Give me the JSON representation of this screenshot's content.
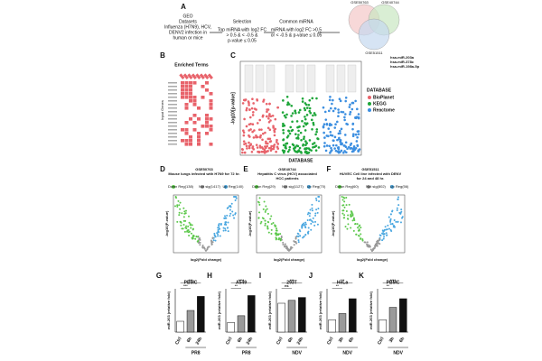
{
  "panel_a": {
    "letter": "A",
    "source": [
      "GEO",
      "Datasets",
      "Influenza (H7N9), HCV,",
      "DENV2 infection in",
      "human or mice"
    ],
    "step1": {
      "title": "Selection",
      "lines": [
        "Top miRNA with log2 FC",
        "> 0.5  & < -0.5 &",
        "p-value ≤ 0.05"
      ]
    },
    "step2": {
      "title": "Common miRNA",
      "lines": [
        "miRNA with log2 FC >0.5",
        "or < -0.5 & p-value ≤ 0.05"
      ]
    },
    "venn": [
      "GSE50763",
      "GSE40744",
      "GSE51511"
    ],
    "result": [
      "hsa-miR-203a",
      "hsa-miR-378c",
      "hsa-miR-198a-5p"
    ]
  },
  "panel_b": {
    "letter": "B",
    "title": "Enriched Terms",
    "y_label": "Input Genes"
  },
  "panel_c": {
    "letter": "C",
    "y_label": "-log10[p-value]",
    "x_label": "DATABASE",
    "legend_title": "DATABASE",
    "legend": [
      {
        "name": "BioPlanet",
        "color": "#e8636b"
      },
      {
        "name": "KEGG",
        "color": "#1ea63a"
      },
      {
        "name": "Reactome",
        "color": "#3d8fe0"
      }
    ]
  },
  "volcanoes": [
    {
      "letter": "D",
      "title": [
        "GSE50763",
        "Mouse lungs infected with H7N9 for 72 hr."
      ],
      "down": "Down Reg(138)",
      "nsig": "Not sig(1417)",
      "up": "Up Reg(140)",
      "y_label": "-log10(P-value)",
      "x_label": "log2(Fold change)"
    },
    {
      "letter": "E",
      "title": [
        "GSE40744",
        "Hepatitis C virus (HCV) associated",
        "HCC patients"
      ],
      "down": "Down Reg(29)",
      "nsig": "Not sig(1127)",
      "up": "Up Reg(70)",
      "y_label": "-log10(P-value)",
      "x_label": "log2(Fold change)"
    },
    {
      "letter": "F",
      "title": [
        "GSE51511",
        "HUVEC Cell line infected with DENV",
        "for 24 and 48 hr."
      ],
      "down": "Down Reg(60)",
      "nsig": "Not sig(802)",
      "up": "Up Reg(56)",
      "y_label": "-log10(P-value)",
      "x_label": "log2(Fold change)"
    }
  ],
  "bar_colors": [
    "#ffffff",
    "#9a9a9a",
    "#111111"
  ],
  "bars": [
    {
      "letter": "G",
      "title": "PBMC",
      "categories": [
        "Ctrl",
        "6h",
        "24h"
      ],
      "values": [
        1,
        2,
        3.3
      ],
      "group": "PR8",
      "sig": [
        "***",
        "***"
      ],
      "ylim": [
        0,
        4
      ],
      "y_label": "miR-203 (relative fold)"
    },
    {
      "letter": "H",
      "title": "A549",
      "categories": [
        "Ctrl",
        "6h",
        "24h"
      ],
      "values": [
        1,
        1.7,
        3.8
      ],
      "group": "PR8",
      "sig": [
        "**",
        "****"
      ],
      "ylim": [
        0,
        4.5
      ],
      "y_label": "miR-203 (relative fold)"
    },
    {
      "letter": "I",
      "title": "293T",
      "categories": [
        "Ctrl",
        "6h",
        "24h"
      ],
      "values": [
        1,
        1.1,
        1.2
      ],
      "group": "NDV",
      "sig": [
        "ns",
        "***"
      ],
      "ylim": [
        0,
        1.5
      ],
      "y_label": "miR-203 (relative fold)"
    },
    {
      "letter": "J",
      "title": "HeLa",
      "categories": [
        "Ctrl",
        "3h",
        "6h"
      ],
      "values": [
        1,
        1.5,
        2.7
      ],
      "group": "NDV",
      "sig": [
        "**",
        "***"
      ],
      "ylim": [
        0,
        3.5
      ],
      "y_label": "miR-203 (relative fold)"
    },
    {
      "letter": "K",
      "title": "PBMC",
      "categories": [
        "Ctrl",
        "3h",
        "6h"
      ],
      "values": [
        1,
        2,
        2.7
      ],
      "group": "NDV",
      "sig": [
        "**",
        "****"
      ],
      "ylim": [
        0,
        3.5
      ],
      "y_label": "miR-203 (relative fold)"
    }
  ]
}
